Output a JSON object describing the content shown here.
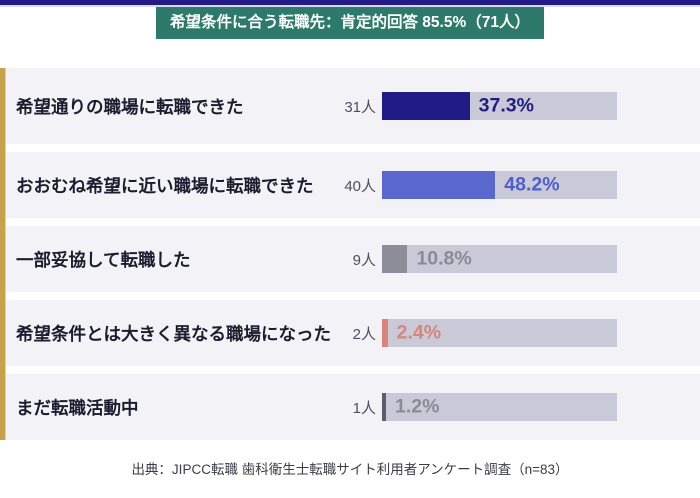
{
  "colors": {
    "top_bar": "#221a87",
    "top_line": "#d9d9f2",
    "banner_bg": "#2d7a6a",
    "accent_stripe": "#c6a24b",
    "accent_stripe_edge": "#e3d49a",
    "row_bg": "#f2f2f7",
    "track_bg": "#c9c9d7"
  },
  "chart_data": {
    "type": "bar",
    "orientation": "horizontal",
    "title": "希望条件に合う転職先：肯定的回答 85.5%（71人）",
    "categories": [
      "希望通りの職場に転職できた",
      "おおむね希望に近い職場に転職できた",
      "一部妥協して転職した",
      "希望条件とは大きく異なる職場になった",
      "まだ転職活動中"
    ],
    "counts": [
      "31人",
      "40人",
      "9人",
      "2人",
      "1人"
    ],
    "values": [
      37.3,
      48.2,
      10.8,
      2.4,
      1.2
    ],
    "value_labels": [
      "37.3%",
      "48.2%",
      "10.8%",
      "2.4%",
      "1.2%"
    ],
    "bar_colors": [
      "#211c85",
      "#5a67cf",
      "#8d8d9a",
      "#d9837b",
      "#5d5d68"
    ],
    "value_label_colors": [
      "#211c85",
      "#4f5ecd",
      "#8b8b96",
      "#d9837b",
      "#8b8b96"
    ],
    "xlim": [
      0,
      100
    ],
    "source": "出典：JIPCC転職 歯科衛生士転職サイト利用者アンケート調査（n=83）"
  },
  "layout_rows": {
    "first_height": 76,
    "height": 66,
    "gap": 8,
    "track_width": 235
  }
}
